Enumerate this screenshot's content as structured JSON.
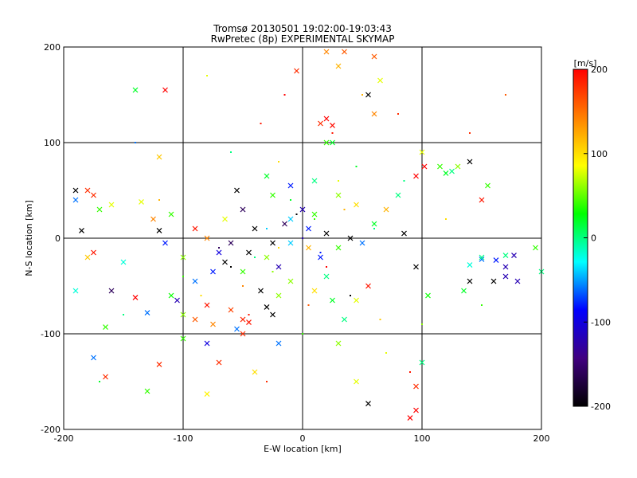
{
  "chart_data": {
    "type": "scatter",
    "title_lines": [
      "Tromsø 20130501 19:02:00-19:03:43",
      "RwPretec (8p) EXPERIMENTAL SKYMAP"
    ],
    "xlabel": "E-W location [km]",
    "ylabel": "N-S location [km]",
    "xlim": [
      -200,
      200
    ],
    "ylim": [
      -200,
      200
    ],
    "x_ticks": [
      -200,
      -100,
      0,
      100,
      200
    ],
    "y_ticks": [
      -200,
      -100,
      0,
      100,
      200
    ],
    "x_tick_labels": [
      "-200",
      "-100",
      "0",
      "100",
      "200"
    ],
    "y_tick_labels": [
      "-200",
      "-100",
      "0",
      "100",
      "200"
    ],
    "grid": true,
    "colorbar": {
      "unit_label": "[m/s]",
      "range": [
        -200,
        200
      ],
      "ticks": [
        200,
        100,
        0,
        -100,
        -200
      ],
      "tick_labels": [
        "200",
        "100",
        "0",
        "-100",
        "-200"
      ],
      "colors": [
        "#ff0000",
        "#ff8000",
        "#ffff00",
        "#00ff00",
        "#00ffff",
        "#0000ff",
        "#400080",
        "#000000"
      ]
    },
    "series": [
      {
        "marker": "x",
        "points": [
          [
            20,
            125,
            200
          ],
          [
            -45,
            -88,
            190
          ],
          [
            -50,
            -85,
            185
          ],
          [
            -60,
            -75,
            170
          ],
          [
            15,
            120,
            180
          ],
          [
            25,
            118,
            195
          ],
          [
            -180,
            50,
            180
          ],
          [
            -175,
            -15,
            190
          ],
          [
            -140,
            155,
            20
          ],
          [
            -120,
            85,
            110
          ],
          [
            -125,
            20,
            140
          ],
          [
            -120,
            8,
            -200
          ],
          [
            -185,
            8,
            -200
          ],
          [
            -190,
            50,
            -200
          ],
          [
            -110,
            25,
            40
          ],
          [
            -90,
            -45,
            -60
          ],
          [
            -105,
            -65,
            -120
          ],
          [
            -90,
            -85,
            160
          ],
          [
            -80,
            -163,
            90
          ],
          [
            -120,
            -132,
            180
          ],
          [
            -165,
            -145,
            180
          ],
          [
            -165,
            -93,
            40
          ],
          [
            -140,
            -62,
            200
          ],
          [
            -130,
            -78,
            -60
          ],
          [
            -110,
            -60,
            30
          ],
          [
            -30,
            -72,
            -200
          ],
          [
            -20,
            -60,
            60
          ],
          [
            0,
            30,
            -120
          ],
          [
            5,
            10,
            -80
          ],
          [
            -10,
            20,
            -40
          ],
          [
            -40,
            10,
            -200
          ],
          [
            -60,
            -5,
            -160
          ],
          [
            -70,
            -15,
            -100
          ],
          [
            -25,
            45,
            40
          ],
          [
            -55,
            50,
            -200
          ],
          [
            10,
            60,
            0
          ],
          [
            20,
            100,
            40
          ],
          [
            25,
            100,
            20
          ],
          [
            30,
            180,
            120
          ],
          [
            35,
            195,
            160
          ],
          [
            20,
            195,
            140
          ],
          [
            -5,
            175,
            180
          ],
          [
            60,
            190,
            160
          ],
          [
            65,
            165,
            80
          ],
          [
            55,
            150,
            -200
          ],
          [
            60,
            130,
            140
          ],
          [
            100,
            90,
            80
          ],
          [
            102,
            75,
            200
          ],
          [
            95,
            65,
            200
          ],
          [
            115,
            75,
            40
          ],
          [
            120,
            68,
            20
          ],
          [
            125,
            70,
            0
          ],
          [
            130,
            75,
            60
          ],
          [
            140,
            80,
            -200
          ],
          [
            150,
            40,
            190
          ],
          [
            155,
            55,
            40
          ],
          [
            170,
            -30,
            -120
          ],
          [
            160,
            -45,
            -200
          ],
          [
            170,
            -40,
            -120
          ],
          [
            177,
            -18,
            -120
          ],
          [
            170,
            -18,
            0
          ],
          [
            162,
            -23,
            -80
          ],
          [
            150,
            -22,
            -60
          ],
          [
            140,
            -28,
            -20
          ],
          [
            140,
            -45,
            -200
          ],
          [
            180,
            -45,
            -120
          ],
          [
            200,
            -35,
            0
          ],
          [
            195,
            -10,
            40
          ],
          [
            150,
            -20,
            0
          ],
          [
            135,
            -55,
            20
          ],
          [
            95,
            -30,
            -200
          ],
          [
            85,
            5,
            -200
          ],
          [
            105,
            -60,
            30
          ],
          [
            100,
            -130,
            0
          ],
          [
            95,
            -155,
            180
          ],
          [
            95,
            -180,
            200
          ],
          [
            55,
            -173,
            -200
          ],
          [
            90,
            -188,
            200
          ],
          [
            45,
            -150,
            80
          ],
          [
            30,
            -110,
            60
          ],
          [
            35,
            -85,
            0
          ],
          [
            45,
            -65,
            80
          ],
          [
            55,
            -50,
            190
          ],
          [
            25,
            -65,
            20
          ],
          [
            20,
            -40,
            0
          ],
          [
            10,
            -55,
            100
          ],
          [
            -10,
            -45,
            60
          ],
          [
            -35,
            -55,
            -200
          ],
          [
            -25,
            -80,
            -200
          ],
          [
            -55,
            -95,
            -60
          ],
          [
            -75,
            -90,
            140
          ],
          [
            -50,
            -100,
            180
          ],
          [
            -80,
            -110,
            -100
          ],
          [
            -70,
            -130,
            180
          ],
          [
            -40,
            -140,
            100
          ],
          [
            -20,
            -110,
            -60
          ],
          [
            -100,
            -105,
            40
          ],
          [
            -130,
            -160,
            40
          ],
          [
            -175,
            -125,
            -60
          ],
          [
            -190,
            -55,
            -20
          ],
          [
            -180,
            -20,
            110
          ],
          [
            -170,
            30,
            40
          ],
          [
            -160,
            35,
            80
          ],
          [
            -175,
            45,
            180
          ],
          [
            -190,
            40,
            -60
          ],
          [
            -135,
            38,
            80
          ],
          [
            -115,
            155,
            200
          ],
          [
            -115,
            -5,
            -80
          ],
          [
            -100,
            -20,
            60
          ],
          [
            -150,
            -25,
            -20
          ],
          [
            -160,
            -55,
            -160
          ],
          [
            -100,
            -80,
            60
          ],
          [
            -80,
            -70,
            190
          ],
          [
            -75,
            -35,
            -80
          ],
          [
            -65,
            -25,
            -200
          ],
          [
            -50,
            -35,
            40
          ],
          [
            -45,
            -15,
            -200
          ],
          [
            -30,
            -20,
            60
          ],
          [
            -20,
            -30,
            -120
          ],
          [
            -10,
            -5,
            -40
          ],
          [
            5,
            -10,
            120
          ],
          [
            15,
            -20,
            -80
          ],
          [
            30,
            -10,
            40
          ],
          [
            40,
            0,
            -200
          ],
          [
            50,
            -5,
            -60
          ],
          [
            60,
            15,
            20
          ],
          [
            70,
            30,
            120
          ],
          [
            80,
            45,
            0
          ],
          [
            45,
            35,
            100
          ],
          [
            30,
            45,
            60
          ],
          [
            -10,
            55,
            -80
          ],
          [
            -30,
            65,
            20
          ],
          [
            -50,
            30,
            -160
          ],
          [
            -65,
            20,
            80
          ],
          [
            -80,
            0,
            140
          ],
          [
            -90,
            10,
            190
          ],
          [
            -25,
            -5,
            -200
          ],
          [
            -15,
            15,
            -160
          ],
          [
            10,
            25,
            40
          ],
          [
            20,
            5,
            -200
          ]
        ]
      },
      {
        "marker": "dot",
        "points": [
          [
            -60,
            -30,
            -200
          ],
          [
            -40,
            -20,
            0
          ],
          [
            -20,
            -10,
            100
          ],
          [
            0,
            0,
            -120
          ],
          [
            10,
            20,
            40
          ],
          [
            20,
            -30,
            200
          ],
          [
            -30,
            10,
            -40
          ],
          [
            -50,
            -50,
            140
          ],
          [
            30,
            60,
            80
          ],
          [
            40,
            -60,
            -200
          ],
          [
            -10,
            40,
            20
          ],
          [
            5,
            -70,
            160
          ],
          [
            25,
            110,
            190
          ],
          [
            -45,
            -80,
            190
          ],
          [
            -70,
            -10,
            -160
          ],
          [
            60,
            10,
            0
          ],
          [
            -25,
            -35,
            60
          ],
          [
            15,
            -15,
            -80
          ],
          [
            -5,
            25,
            -200
          ],
          [
            35,
            30,
            120
          ],
          [
            -15,
            150,
            200
          ],
          [
            50,
            150,
            120
          ],
          [
            80,
            130,
            180
          ],
          [
            -80,
            170,
            80
          ],
          [
            100,
            -90,
            60
          ],
          [
            -100,
            -40,
            40
          ],
          [
            -120,
            40,
            120
          ],
          [
            120,
            20,
            100
          ],
          [
            -150,
            -80,
            0
          ],
          [
            150,
            -70,
            40
          ],
          [
            -140,
            100,
            -60
          ],
          [
            140,
            110,
            180
          ],
          [
            -60,
            90,
            0
          ],
          [
            70,
            -120,
            80
          ],
          [
            -30,
            -150,
            180
          ],
          [
            90,
            -140,
            190
          ],
          [
            -170,
            -150,
            20
          ],
          [
            170,
            150,
            160
          ],
          [
            0,
            -100,
            40
          ],
          [
            -20,
            80,
            100
          ],
          [
            45,
            75,
            20
          ],
          [
            -85,
            -60,
            100
          ],
          [
            85,
            60,
            0
          ],
          [
            -35,
            120,
            190
          ],
          [
            65,
            -85,
            110
          ]
        ]
      }
    ]
  }
}
